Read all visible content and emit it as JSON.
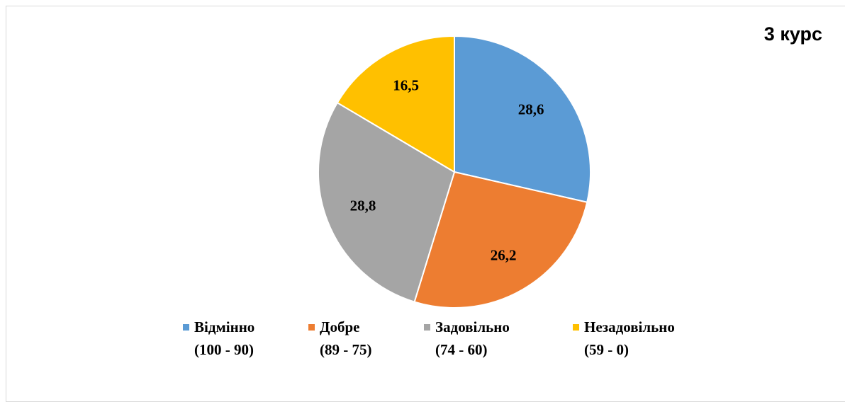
{
  "chart_data": {
    "type": "pie",
    "title": "3 курс",
    "categories": [
      "Відмінно\n(100 - 90)",
      "Добре\n(89 - 75)",
      "Задовільно\n(74 - 60)",
      "Незадовільно\n(59 - 0)"
    ],
    "values": [
      28.6,
      26.2,
      28.8,
      16.5
    ],
    "value_labels": [
      "28,6",
      "26,2",
      "28,8",
      "16,5"
    ],
    "colors": [
      "#5b9bd5",
      "#ed7d31",
      "#a5a5a5",
      "#ffc000"
    ],
    "legend": "bottom"
  }
}
